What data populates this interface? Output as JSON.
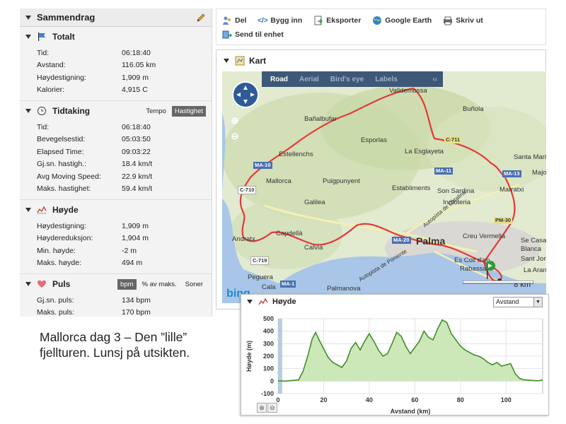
{
  "summary": {
    "title": "Sammendrag",
    "sections": {
      "total": {
        "title": "Totalt",
        "rows": [
          {
            "k": "Tid:",
            "v": "06:18:40"
          },
          {
            "k": "Avstand:",
            "v": "116.05 km"
          },
          {
            "k": "Høydestigning:",
            "v": "1,909 m"
          },
          {
            "k": "Kalorier:",
            "v": "4,915 C"
          }
        ]
      },
      "timing": {
        "title": "Tidtaking",
        "tempo_label": "Tempo",
        "speed_label": "Hastighet",
        "rows": [
          {
            "k": "Tid:",
            "v": "06:18:40"
          },
          {
            "k": "Bevegelsestid:",
            "v": "05:03:50"
          },
          {
            "k": "Elapsed Time:",
            "v": "09:03:22"
          },
          {
            "k": "Gj.sn. hastigh.:",
            "v": "18.4 km/t"
          },
          {
            "k": "Avg Moving Speed:",
            "v": "22.9 km/t"
          },
          {
            "k": "Maks. hastighet:",
            "v": "59.4 km/t"
          }
        ]
      },
      "height": {
        "title": "Høyde",
        "rows": [
          {
            "k": "Høydestigning:",
            "v": "1,909 m"
          },
          {
            "k": "Høydereduksjon:",
            "v": "1,904 m"
          },
          {
            "k": "Min. høyde:",
            "v": "-2 m"
          },
          {
            "k": "Maks. høyde:",
            "v": "494 m"
          }
        ]
      },
      "pulse": {
        "title": "Puls",
        "bpm_label": "bpm",
        "pct_label": "% av maks.",
        "zones_label": "Soner",
        "rows": [
          {
            "k": "Gj.sn. puls:",
            "v": "134 bpm"
          },
          {
            "k": "Maks. puls:",
            "v": "170 bpm"
          }
        ]
      }
    }
  },
  "toolbar": {
    "share": "Del",
    "embed": "Bygg inn",
    "export": "Eksporter",
    "google_earth": "Google Earth",
    "print": "Skriv ut",
    "send": "Send til enhet"
  },
  "map": {
    "title": "Kart",
    "tabs": {
      "road": "Road",
      "aerial": "Aerial",
      "birds_eye": "Bird's eye",
      "labels": "Labels",
      "collapse": "‹‹"
    },
    "places": {
      "valldemossa": "Valldemossa",
      "bunyola": "Buñola",
      "banyalbufar": "Bañalbufar",
      "esporlas": "Esporlas",
      "estellenchs": "Estellenchs",
      "esglayeta": "La Esglayeta",
      "santa_maria": "Santa Mari",
      "mallorca": "Mallorca",
      "puigpunyent": "Puigpunyent",
      "establiments": "Establiments",
      "marratxi": "Marratxi",
      "sa_dorada": "Majo",
      "galilea": "Galilea",
      "son_sardina": "Son Sardina",
      "indioteria": "Indioteria",
      "andratx": "Andratx",
      "capdella": "Capdellà",
      "calvia": "Calvià",
      "palma": "Palma",
      "creu_vermella": "Creu Vermella",
      "se_casa": "Se Casa",
      "blanca": "Blanca",
      "sant_jordi": "Sant Jord",
      "la_aranjas": "La Aranjas",
      "peguera": "Peguera",
      "cala": "Cala",
      "palmanova": "Palmanova",
      "es_coll": "Es Coll d'en",
      "rabassa": "Rabassa",
      "autopista_poniente": "Autopista de Poniente",
      "autopista_catalina": "Autopista de Catalina"
    },
    "roads": {
      "ma10a": "MA-10",
      "c710a": "C-710",
      "c711": "C-711",
      "ma11": "MA-11",
      "ma13": "MA-13",
      "pm30": "PM-30",
      "ma20": "MA-20",
      "c719": "C-719",
      "ma1": "MA-1"
    },
    "scale": "8 km",
    "provider": "bing"
  },
  "elevation": {
    "title": "Høyde",
    "axis_select": "Avstand",
    "chart_data": {
      "type": "area",
      "xlabel": "Avstand (km)",
      "ylabel": "Høyde (m)",
      "xlim": [
        0,
        116.05
      ],
      "ylim": [
        -100,
        500
      ],
      "x_ticks": [
        0,
        20,
        40,
        60,
        80,
        100
      ],
      "y_ticks": [
        -100,
        0,
        100,
        200,
        300,
        400,
        500
      ],
      "color": "#3f8f2a",
      "fill": "#c8e6b0",
      "x": [
        0,
        3,
        6,
        9,
        11,
        13,
        15,
        16.5,
        18,
        20,
        22,
        24,
        26,
        28,
        30,
        32,
        34,
        36,
        38,
        40,
        42,
        44,
        46,
        48,
        50,
        52,
        54,
        56,
        58,
        60,
        62,
        64,
        66,
        68,
        70,
        72,
        74,
        76,
        78,
        80,
        82,
        84,
        86,
        88,
        90,
        92,
        94,
        96,
        98,
        100,
        102,
        104,
        106,
        108,
        110,
        112,
        114,
        116.05
      ],
      "y": [
        2,
        0,
        5,
        10,
        80,
        200,
        340,
        390,
        330,
        260,
        190,
        150,
        130,
        110,
        160,
        260,
        310,
        250,
        320,
        380,
        320,
        250,
        200,
        220,
        300,
        390,
        360,
        280,
        220,
        270,
        320,
        400,
        350,
        330,
        420,
        490,
        470,
        380,
        330,
        280,
        250,
        230,
        210,
        200,
        180,
        150,
        130,
        150,
        120,
        130,
        140,
        60,
        20,
        10,
        8,
        5,
        3,
        10
      ]
    }
  },
  "caption": {
    "line1": "Mallorca dag 3 – Den ”lille”",
    "line2": "fjellturen. Lunsj på utsikten."
  }
}
